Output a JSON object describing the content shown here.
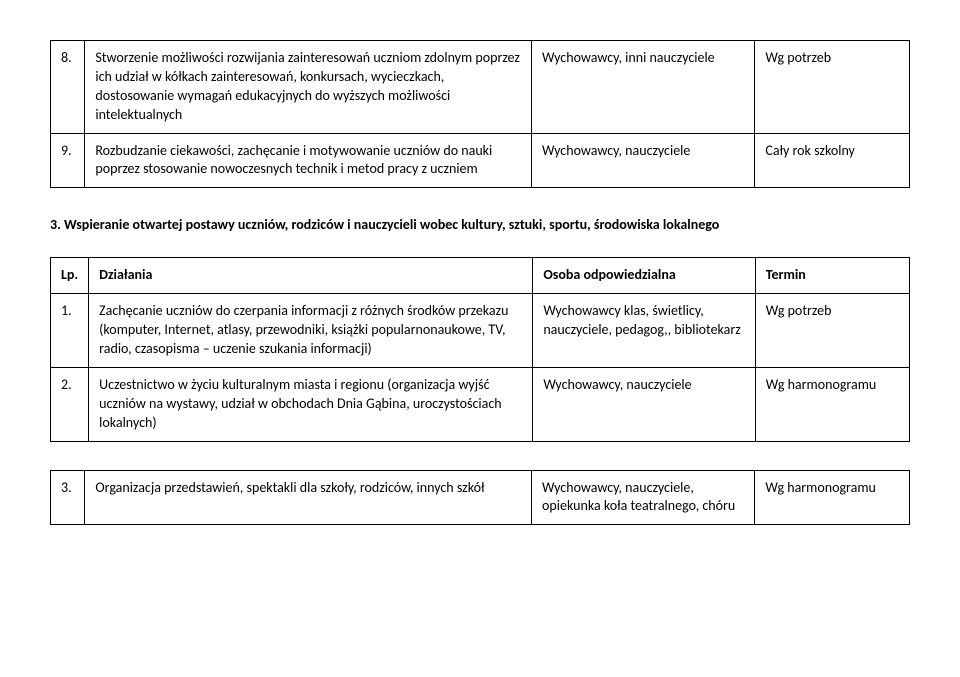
{
  "table1": {
    "rows": [
      {
        "num": "8.",
        "desc": "Stworzenie możliwości rozwijania zainteresowań uczniom zdolnym poprzez ich udział w kółkach zainteresowań, konkursach, wycieczkach, dostosowanie wymagań edukacyjnych do wyższych możliwości intelektualnych",
        "who": "Wychowawcy, inni nauczyciele",
        "term": "Wg potrzeb"
      },
      {
        "num": "9.",
        "desc": "Rozbudzanie ciekawości, zachęcanie i motywowanie uczniów do nauki poprzez stosowanie nowoczesnych technik i metod pracy z uczniem",
        "who": "Wychowawcy, nauczyciele",
        "term": "Cały rok szkolny"
      }
    ]
  },
  "section_title": "3. Wspieranie otwartej postawy uczniów, rodziców i nauczycieli wobec kultury, sztuki, sportu, środowiska lokalnego",
  "table2": {
    "header": {
      "num": "Lp.",
      "desc": "Działania",
      "who": "Osoba odpowiedzialna",
      "term": "Termin"
    },
    "rows": [
      {
        "num": "1.",
        "desc": "Zachęcanie uczniów do czerpania informacji z różnych środków przekazu (komputer, Internet, atlasy, przewodniki, książki popularnonaukowe, TV, radio, czasopisma – uczenie szukania informacji)",
        "who": "Wychowawcy klas, świetlicy, nauczyciele, pedagog,, bibliotekarz",
        "term": "Wg potrzeb"
      },
      {
        "num": "2.",
        "desc": "Uczestnictwo w życiu kulturalnym miasta i regionu (organizacja wyjść uczniów na wystawy, udział w obchodach Dnia Gąbina, uroczystościach lokalnych)",
        "who": "Wychowawcy, nauczyciele",
        "term": "Wg harmonogramu"
      }
    ]
  },
  "table3": {
    "rows": [
      {
        "num": "3.",
        "desc": "Organizacja przedstawień, spektakli dla szkoły, rodziców, innych szkół",
        "who": "Wychowawcy, nauczyciele, opiekunka koła teatralnego, chóru",
        "term": "Wg harmonogramu"
      }
    ]
  }
}
